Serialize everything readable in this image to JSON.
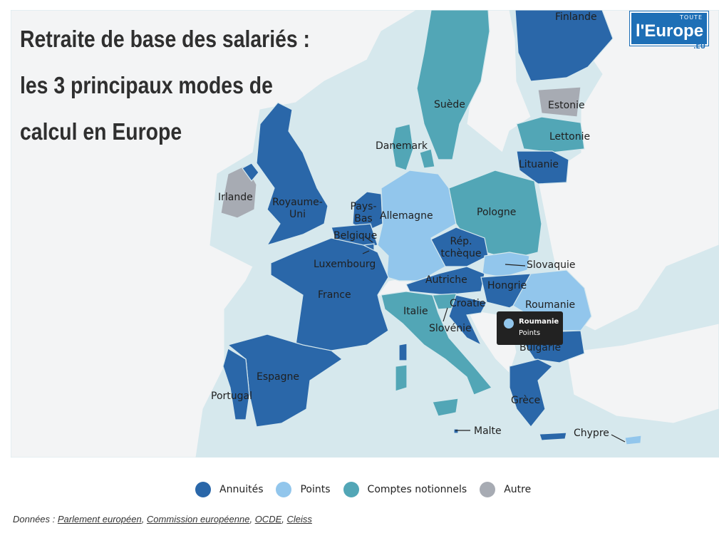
{
  "title_lines": [
    "Retraite de base des salariés :",
    "les 3 principaux modes de",
    "calcul en Europe"
  ],
  "logo": {
    "top": "TOUTE",
    "name": "l'Europe",
    "suffix": ".EU"
  },
  "colors": {
    "annuites": "#2a67a9",
    "points": "#92c6ec",
    "comptes": "#52a6b6",
    "autre": "#a7abb3",
    "sea": "#d6e8ed",
    "land_other": "#f3f4f5"
  },
  "countries": [
    {
      "name": "Finlande",
      "category": "Annuités"
    },
    {
      "name": "Estonie",
      "category": "Autre"
    },
    {
      "name": "Suède",
      "category": "Comptes notionnels"
    },
    {
      "name": "Lettonie",
      "category": "Comptes notionnels"
    },
    {
      "name": "Danemark",
      "category": "Comptes notionnels"
    },
    {
      "name": "Lituanie",
      "category": "Annuités"
    },
    {
      "name": "Irlande",
      "category": "Autre"
    },
    {
      "name": "Royaume-Uni",
      "category": "Annuités"
    },
    {
      "name": "Pays-Bas",
      "category": "Annuités"
    },
    {
      "name": "Allemagne",
      "category": "Points"
    },
    {
      "name": "Pologne",
      "category": "Comptes notionnels"
    },
    {
      "name": "Belgique",
      "category": "Annuités"
    },
    {
      "name": "Rép. tchèque",
      "category": "Annuités"
    },
    {
      "name": "Luxembourg",
      "category": "Annuités"
    },
    {
      "name": "Slovaquie",
      "category": "Points"
    },
    {
      "name": "Autriche",
      "category": "Annuités"
    },
    {
      "name": "France",
      "category": "Annuités"
    },
    {
      "name": "Hongrie",
      "category": "Annuités"
    },
    {
      "name": "Roumanie",
      "category": "Points"
    },
    {
      "name": "Croatie",
      "category": "Points"
    },
    {
      "name": "Italie",
      "category": "Comptes notionnels"
    },
    {
      "name": "Slovénie",
      "category": "Annuités"
    },
    {
      "name": "Bulgarie",
      "category": "Annuités"
    },
    {
      "name": "Espagne",
      "category": "Annuités"
    },
    {
      "name": "Portugal",
      "category": "Annuités"
    },
    {
      "name": "Grèce",
      "category": "Annuités"
    },
    {
      "name": "Malte",
      "category": "Annuités"
    },
    {
      "name": "Chypre",
      "category": "Points"
    }
  ],
  "labels": {
    "finlande": "Finlande",
    "estonie": "Estonie",
    "suede": "Suède",
    "lettonie": "Lettonie",
    "danemark": "Danemark",
    "lituanie": "Lituanie",
    "irlande": "Irlande",
    "ru1": "Royaume-",
    "ru2": "Uni",
    "pb1": "Pays-",
    "pb2": "Bas",
    "allemagne": "Allemagne",
    "pologne": "Pologne",
    "belgique": "Belgique",
    "cz1": "Rép.",
    "cz2": "tchèque",
    "luxembourg": "Luxembourg",
    "slovaquie": "Slovaquie",
    "autriche": "Autriche",
    "france": "France",
    "hongrie": "Hongrie",
    "roumanie": "Roumanie",
    "croatie": "Croatie",
    "italie": "Italie",
    "slovenie": "Slovénie",
    "bulgarie": "Bulgarie",
    "espagne": "Espagne",
    "portugal": "Portugal",
    "grece": "Grèce",
    "malte": "Malte",
    "chypre": "Chypre"
  },
  "tooltip": {
    "country": "Roumanie",
    "category": "Points"
  },
  "legend": [
    {
      "label": "Annuités",
      "color": "#2a67a9"
    },
    {
      "label": "Points",
      "color": "#92c6ec"
    },
    {
      "label": "Comptes notionnels",
      "color": "#52a6b6"
    },
    {
      "label": "Autre",
      "color": "#a7abb3"
    }
  ],
  "source": {
    "prefix": "Données : ",
    "links": [
      "Parlement européen",
      "Commission européenne",
      "OCDE",
      "Cleiss"
    ],
    "separator": ", "
  }
}
